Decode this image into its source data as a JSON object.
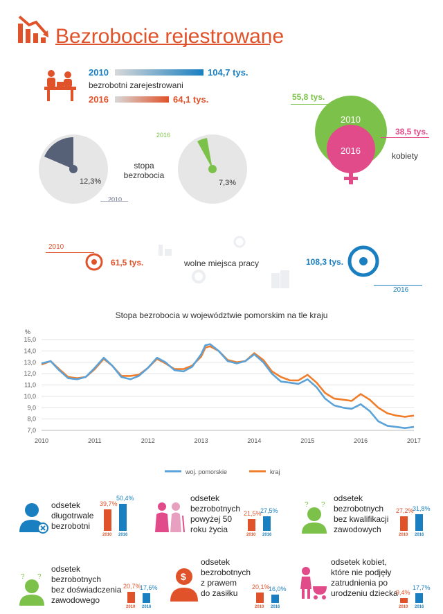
{
  "header": {
    "title": "Bezrobocie rejestrowane",
    "brand_color": "#e0522a"
  },
  "registered": {
    "label": "bezrobotni zarejestrowani",
    "y2010": "2010",
    "v2010": "104,7 tys.",
    "f2010": 1.0,
    "y2016": "2016",
    "v2016": "64,1 tys.",
    "f2016": 0.612
  },
  "women": {
    "label": "kobiety",
    "y2010": "2010",
    "v2010": "55,8 tys.",
    "y2016": "2016",
    "v2016": "38,5 tys."
  },
  "rate": {
    "label_line1": "stopa",
    "label_line2": "bezrobocia",
    "y2010": "2010",
    "v2010": "12,3%",
    "y2016": "2016",
    "v2016": "7,3%"
  },
  "jobs": {
    "label": "wolne miejsca pracy",
    "y2010": "2010",
    "v2010": "61,5 tys.",
    "y2016": "2016",
    "v2016": "108,3 tys."
  },
  "chart_data": {
    "type": "line",
    "title": "Stopa bezrobocia w województwie pomorskim na tle kraju",
    "ylabel": "%",
    "ylim": [
      7.0,
      15.0
    ],
    "yticks": [
      "15,0",
      "14,0",
      "13,0",
      "12,0",
      "11,0",
      "10,0",
      "9,0",
      "8,0",
      "7,0"
    ],
    "xlim": [
      2010,
      2017
    ],
    "xticks": [
      "2010",
      "2011",
      "2012",
      "2013",
      "2014",
      "2015",
      "2016",
      "2017"
    ],
    "grid": true,
    "legend": "bottom-center",
    "series": [
      {
        "name": "woj. pomorskie",
        "color": "#5aa2d8",
        "x": [
          2010.0,
          2010.17,
          2010.33,
          2010.5,
          2010.67,
          2010.83,
          2011.0,
          2011.17,
          2011.33,
          2011.5,
          2011.67,
          2011.83,
          2012.0,
          2012.17,
          2012.33,
          2012.5,
          2012.67,
          2012.83,
          2013.0,
          2013.08,
          2013.17,
          2013.33,
          2013.5,
          2013.67,
          2013.83,
          2014.0,
          2014.17,
          2014.33,
          2014.5,
          2014.67,
          2014.83,
          2015.0,
          2015.17,
          2015.33,
          2015.5,
          2015.67,
          2015.83,
          2016.0,
          2016.17,
          2016.33,
          2016.5,
          2016.67,
          2016.83,
          2017.0
        ],
        "y": [
          12.9,
          13.1,
          12.3,
          11.6,
          11.5,
          11.7,
          12.5,
          13.4,
          12.7,
          11.7,
          11.5,
          11.8,
          12.5,
          13.4,
          13.0,
          12.3,
          12.2,
          12.6,
          13.7,
          14.5,
          14.6,
          14.0,
          13.1,
          12.9,
          13.1,
          13.7,
          13.0,
          12.0,
          11.3,
          11.2,
          11.1,
          11.5,
          10.8,
          9.8,
          9.2,
          9.0,
          8.9,
          9.3,
          8.7,
          7.8,
          7.4,
          7.3,
          7.2,
          7.3
        ]
      },
      {
        "name": "kraj",
        "color": "#f07d2a",
        "x": [
          2010.0,
          2010.17,
          2010.33,
          2010.5,
          2010.67,
          2010.83,
          2011.0,
          2011.17,
          2011.33,
          2011.5,
          2011.67,
          2011.83,
          2012.0,
          2012.17,
          2012.33,
          2012.5,
          2012.67,
          2012.83,
          2013.0,
          2013.08,
          2013.17,
          2013.33,
          2013.5,
          2013.67,
          2013.83,
          2014.0,
          2014.17,
          2014.33,
          2014.5,
          2014.67,
          2014.83,
          2015.0,
          2015.17,
          2015.33,
          2015.5,
          2015.67,
          2015.83,
          2016.0,
          2016.17,
          2016.33,
          2016.5,
          2016.67,
          2016.83,
          2017.0
        ],
        "y": [
          12.8,
          13.1,
          12.4,
          11.7,
          11.6,
          11.7,
          12.4,
          13.3,
          12.7,
          11.8,
          11.8,
          11.9,
          12.5,
          13.3,
          12.9,
          12.4,
          12.4,
          12.7,
          13.5,
          14.3,
          14.4,
          14.0,
          13.2,
          13.0,
          13.1,
          13.8,
          13.2,
          12.2,
          11.7,
          11.4,
          11.4,
          11.9,
          11.2,
          10.3,
          9.8,
          9.7,
          9.6,
          10.2,
          9.7,
          9.0,
          8.5,
          8.3,
          8.2,
          8.3
        ]
      }
    ]
  },
  "stats": [
    {
      "label": [
        "odsetek",
        "długotrwale",
        "bezrobotni"
      ],
      "v2010": "39,7%",
      "v2016": "50,4%",
      "n2010": 39.7,
      "n2016": 50.4,
      "y2010": "2010",
      "y2016": "2016",
      "icon": "person-clock-icon"
    },
    {
      "label": [
        "odsetek",
        "bezrobotnych",
        "powyżej 50",
        "roku życia"
      ],
      "v2010": "21,5%",
      "v2016": "27,5%",
      "n2010": 21.5,
      "n2016": 27.5,
      "y2010": "2010",
      "y2016": "2016",
      "icon": "elderly-couple-icon"
    },
    {
      "label": [
        "odsetek",
        "bezrobotnych",
        "bez kwalifikacji",
        "zawodowych"
      ],
      "v2010": "27,2%",
      "v2016": "31,8%",
      "n2010": 27.2,
      "n2016": 31.8,
      "y2010": "2010",
      "y2016": "2016",
      "icon": "question-person-icon"
    },
    {
      "label": [
        "odsetek",
        "bezrobotnych",
        "bez doświadczenia",
        "zawodowego"
      ],
      "v2010": "20,7%",
      "v2016": "17,6%",
      "n2010": 20.7,
      "n2016": 17.6,
      "y2010": "2010",
      "y2016": "2016",
      "icon": "confused-person-icon"
    },
    {
      "label": [
        "odsetek",
        "bezrobotnych",
        "z prawem",
        "do zasiłku"
      ],
      "v2010": "20,1%",
      "v2016": "16,0%",
      "n2010": 20.1,
      "n2016": 16.0,
      "y2010": "2010",
      "y2016": "2016",
      "icon": "dollar-person-icon"
    },
    {
      "label": [
        "odsetek kobiet,",
        "które nie podjęły",
        "zatrudnienia po",
        "urodzeniu dziecka"
      ],
      "v2010": "9,4%",
      "v2016": "17,7%",
      "n2010": 9.4,
      "n2016": 17.7,
      "y2010": "2010",
      "y2016": "2016",
      "icon": "mother-stroller-icon"
    }
  ]
}
